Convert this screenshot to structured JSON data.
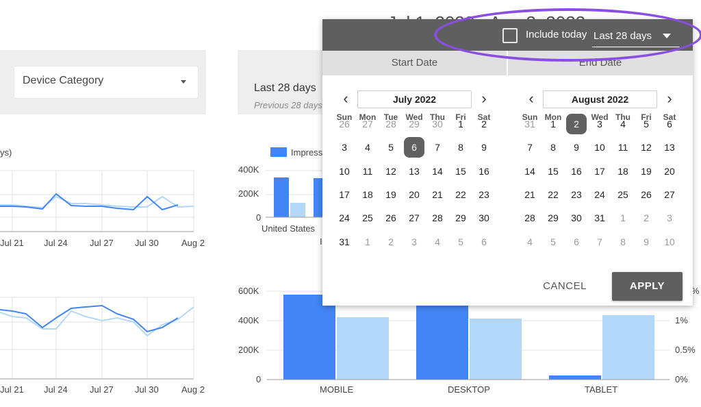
{
  "header": {
    "partial_title": "Jul 1, 2022 - Aug 2, 2022"
  },
  "filters": {
    "device_category": "Device Category"
  },
  "scorecard": {
    "label": "Last 28 days",
    "sublabel": "Previous 28 days"
  },
  "line_charts": {
    "partial_legend": "ys)",
    "x_ticks": [
      "Jul 21",
      "Jul 24",
      "Jul 27",
      "Jul 30",
      "Aug 2"
    ]
  },
  "bar_chart_top": {
    "legend": "Impress",
    "y_ticks": [
      "400K",
      "200K",
      "0"
    ],
    "x_label": "United States",
    "x_label_partial": "I"
  },
  "bar_chart_bottom": {
    "y_ticks": [
      "600K",
      "400K",
      "200K",
      "0"
    ],
    "y2_ticks": [
      "1%",
      "0.5%",
      "0%"
    ],
    "y2_partial": "%",
    "categories": [
      "MOBILE",
      "DESKTOP",
      "TABLET"
    ]
  },
  "colors": {
    "current": "#4285f4",
    "previous": "#b3d7f7",
    "header": "#5f5f5f",
    "highlight": "#8a4fe0"
  },
  "date_picker": {
    "include_today_label": "Include today",
    "preset_value": "Last 28 days",
    "tabs": {
      "start": "Start Date",
      "end": "End Date"
    },
    "weekdays": [
      "Sun",
      "Mon",
      "Tue",
      "Wed",
      "Thu",
      "Fri",
      "Sat"
    ],
    "left": {
      "month": "July 2022",
      "rows": [
        [
          [
            "26",
            0
          ],
          [
            "27",
            0
          ],
          [
            "28",
            0
          ],
          [
            "29",
            0
          ],
          [
            "30",
            0
          ],
          [
            "1",
            1
          ],
          [
            "2",
            1
          ]
        ],
        [
          [
            "3",
            1
          ],
          [
            "4",
            1
          ],
          [
            "5",
            1
          ],
          [
            "6",
            2
          ],
          [
            "7",
            1
          ],
          [
            "8",
            1
          ],
          [
            "9",
            1
          ]
        ],
        [
          [
            "10",
            1
          ],
          [
            "11",
            1
          ],
          [
            "12",
            1
          ],
          [
            "13",
            1
          ],
          [
            "14",
            1
          ],
          [
            "15",
            1
          ],
          [
            "16",
            1
          ]
        ],
        [
          [
            "17",
            1
          ],
          [
            "18",
            1
          ],
          [
            "19",
            1
          ],
          [
            "20",
            1
          ],
          [
            "21",
            1
          ],
          [
            "22",
            1
          ],
          [
            "23",
            1
          ]
        ],
        [
          [
            "24",
            1
          ],
          [
            "25",
            1
          ],
          [
            "26",
            1
          ],
          [
            "27",
            1
          ],
          [
            "28",
            1
          ],
          [
            "29",
            1
          ],
          [
            "30",
            1
          ]
        ],
        [
          [
            "31",
            1
          ],
          [
            "1",
            0
          ],
          [
            "2",
            0
          ],
          [
            "3",
            0
          ],
          [
            "4",
            0
          ],
          [
            "5",
            0
          ],
          [
            "6",
            0
          ]
        ]
      ]
    },
    "right": {
      "month": "August 2022",
      "rows": [
        [
          [
            "31",
            0
          ],
          [
            "1",
            1
          ],
          [
            "2",
            2
          ],
          [
            "3",
            1
          ],
          [
            "4",
            1
          ],
          [
            "5",
            1
          ],
          [
            "6",
            1
          ]
        ],
        [
          [
            "7",
            1
          ],
          [
            "8",
            1
          ],
          [
            "9",
            1
          ],
          [
            "10",
            1
          ],
          [
            "11",
            1
          ],
          [
            "12",
            1
          ],
          [
            "13",
            1
          ]
        ],
        [
          [
            "14",
            1
          ],
          [
            "15",
            1
          ],
          [
            "16",
            1
          ],
          [
            "17",
            1
          ],
          [
            "18",
            1
          ],
          [
            "19",
            1
          ],
          [
            "20",
            1
          ]
        ],
        [
          [
            "21",
            1
          ],
          [
            "22",
            1
          ],
          [
            "23",
            1
          ],
          [
            "24",
            1
          ],
          [
            "25",
            1
          ],
          [
            "26",
            1
          ],
          [
            "27",
            1
          ]
        ],
        [
          [
            "28",
            1
          ],
          [
            "29",
            1
          ],
          [
            "30",
            1
          ],
          [
            "31",
            1
          ],
          [
            "1",
            0
          ],
          [
            "2",
            0
          ],
          [
            "3",
            0
          ]
        ],
        [
          [
            "4",
            0
          ],
          [
            "5",
            0
          ],
          [
            "6",
            0
          ],
          [
            "7",
            0
          ],
          [
            "8",
            0
          ],
          [
            "9",
            0
          ],
          [
            "10",
            0
          ]
        ]
      ]
    },
    "cancel_label": "CANCEL",
    "apply_label": "APPLY"
  }
}
